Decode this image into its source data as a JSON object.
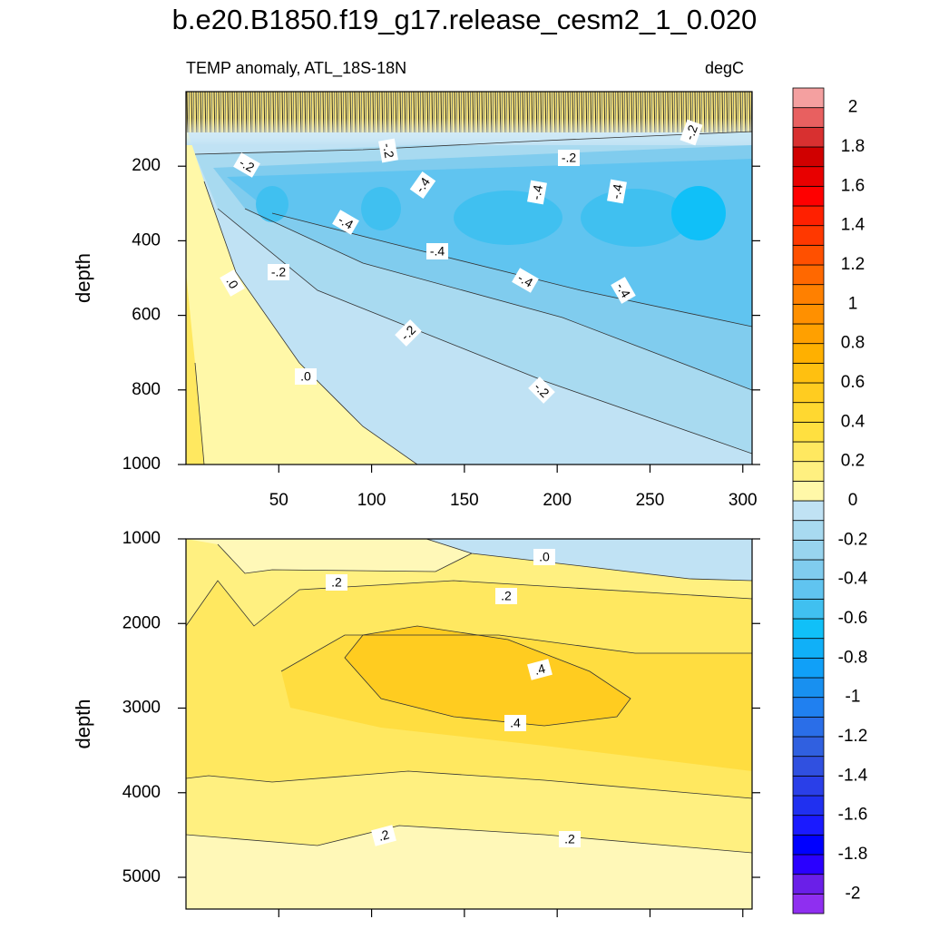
{
  "chart_data": [
    {
      "type": "contour",
      "title": "b.e20.B1850.f19_g17.release_cesm2_1_0.020",
      "subtitle_left": "TEMP anomaly, ATL_18S-18N",
      "subtitle_right": "degC",
      "ylabel": "depth",
      "xlim": [
        0,
        305
      ],
      "xticks": [
        50,
        100,
        150,
        200,
        250,
        300
      ],
      "xtick_labels": true,
      "ylim": [
        0,
        1000
      ],
      "yticks": [
        200,
        400,
        600,
        800,
        1000
      ],
      "y_reversed": true,
      "contour_labels": [
        "-.2",
        "-.2",
        "-.2",
        "-.2",
        "-.4",
        "-.4",
        "-.4",
        "-.4",
        "-.4",
        "-.2",
        ".0",
        "-.4",
        "-.4",
        "-.2",
        ".0",
        "-.2"
      ]
    },
    {
      "type": "contour",
      "ylabel": "depth",
      "xlim": [
        0,
        305
      ],
      "xticks": [
        50,
        100,
        150,
        200,
        250,
        300
      ],
      "xtick_labels": false,
      "ylim": [
        1000,
        5375
      ],
      "yticks": [
        1000,
        2000,
        3000,
        4000,
        5000
      ],
      "y_reversed": true,
      "contour_labels": [
        ".0",
        ".2",
        ".2",
        ".4",
        ".4",
        ".2",
        ".2"
      ]
    },
    {
      "type": "colorbar",
      "lim": [
        -2.1,
        2.1
      ],
      "ticks": [
        2,
        1.8,
        1.6,
        1.4,
        1.2,
        1,
        0.8,
        0.6,
        0.4,
        0.2,
        0,
        -0.2,
        -0.4,
        -0.6,
        -0.8,
        -1,
        -1.2,
        -1.4,
        -1.6,
        -1.8,
        -2
      ],
      "colors": [
        "#8f2ff0",
        "#6a1fe8",
        "#2a00ff",
        "#0000ff",
        "#1a1aff",
        "#2030f0",
        "#2a3fe8",
        "#3050e0",
        "#3060e0",
        "#2a6ee8",
        "#2080f0",
        "#1890f0",
        "#10a0f8",
        "#10b0f8",
        "#10c0f8",
        "#40c0f0",
        "#60c4f0",
        "#80ccee",
        "#98d4ee",
        "#a8daf0",
        "#c0e2f4",
        "#fff8a8",
        "#fff080",
        "#ffe860",
        "#ffe040",
        "#ffd830",
        "#ffcc20",
        "#ffc010",
        "#ffb000",
        "#ffa000",
        "#ff9000",
        "#ff8000",
        "#ff6800",
        "#ff5000",
        "#ff3800",
        "#ff2000",
        "#ff0000",
        "#e80000",
        "#d00000",
        "#d83030",
        "#e86060",
        "#f4a0a0"
      ]
    }
  ]
}
